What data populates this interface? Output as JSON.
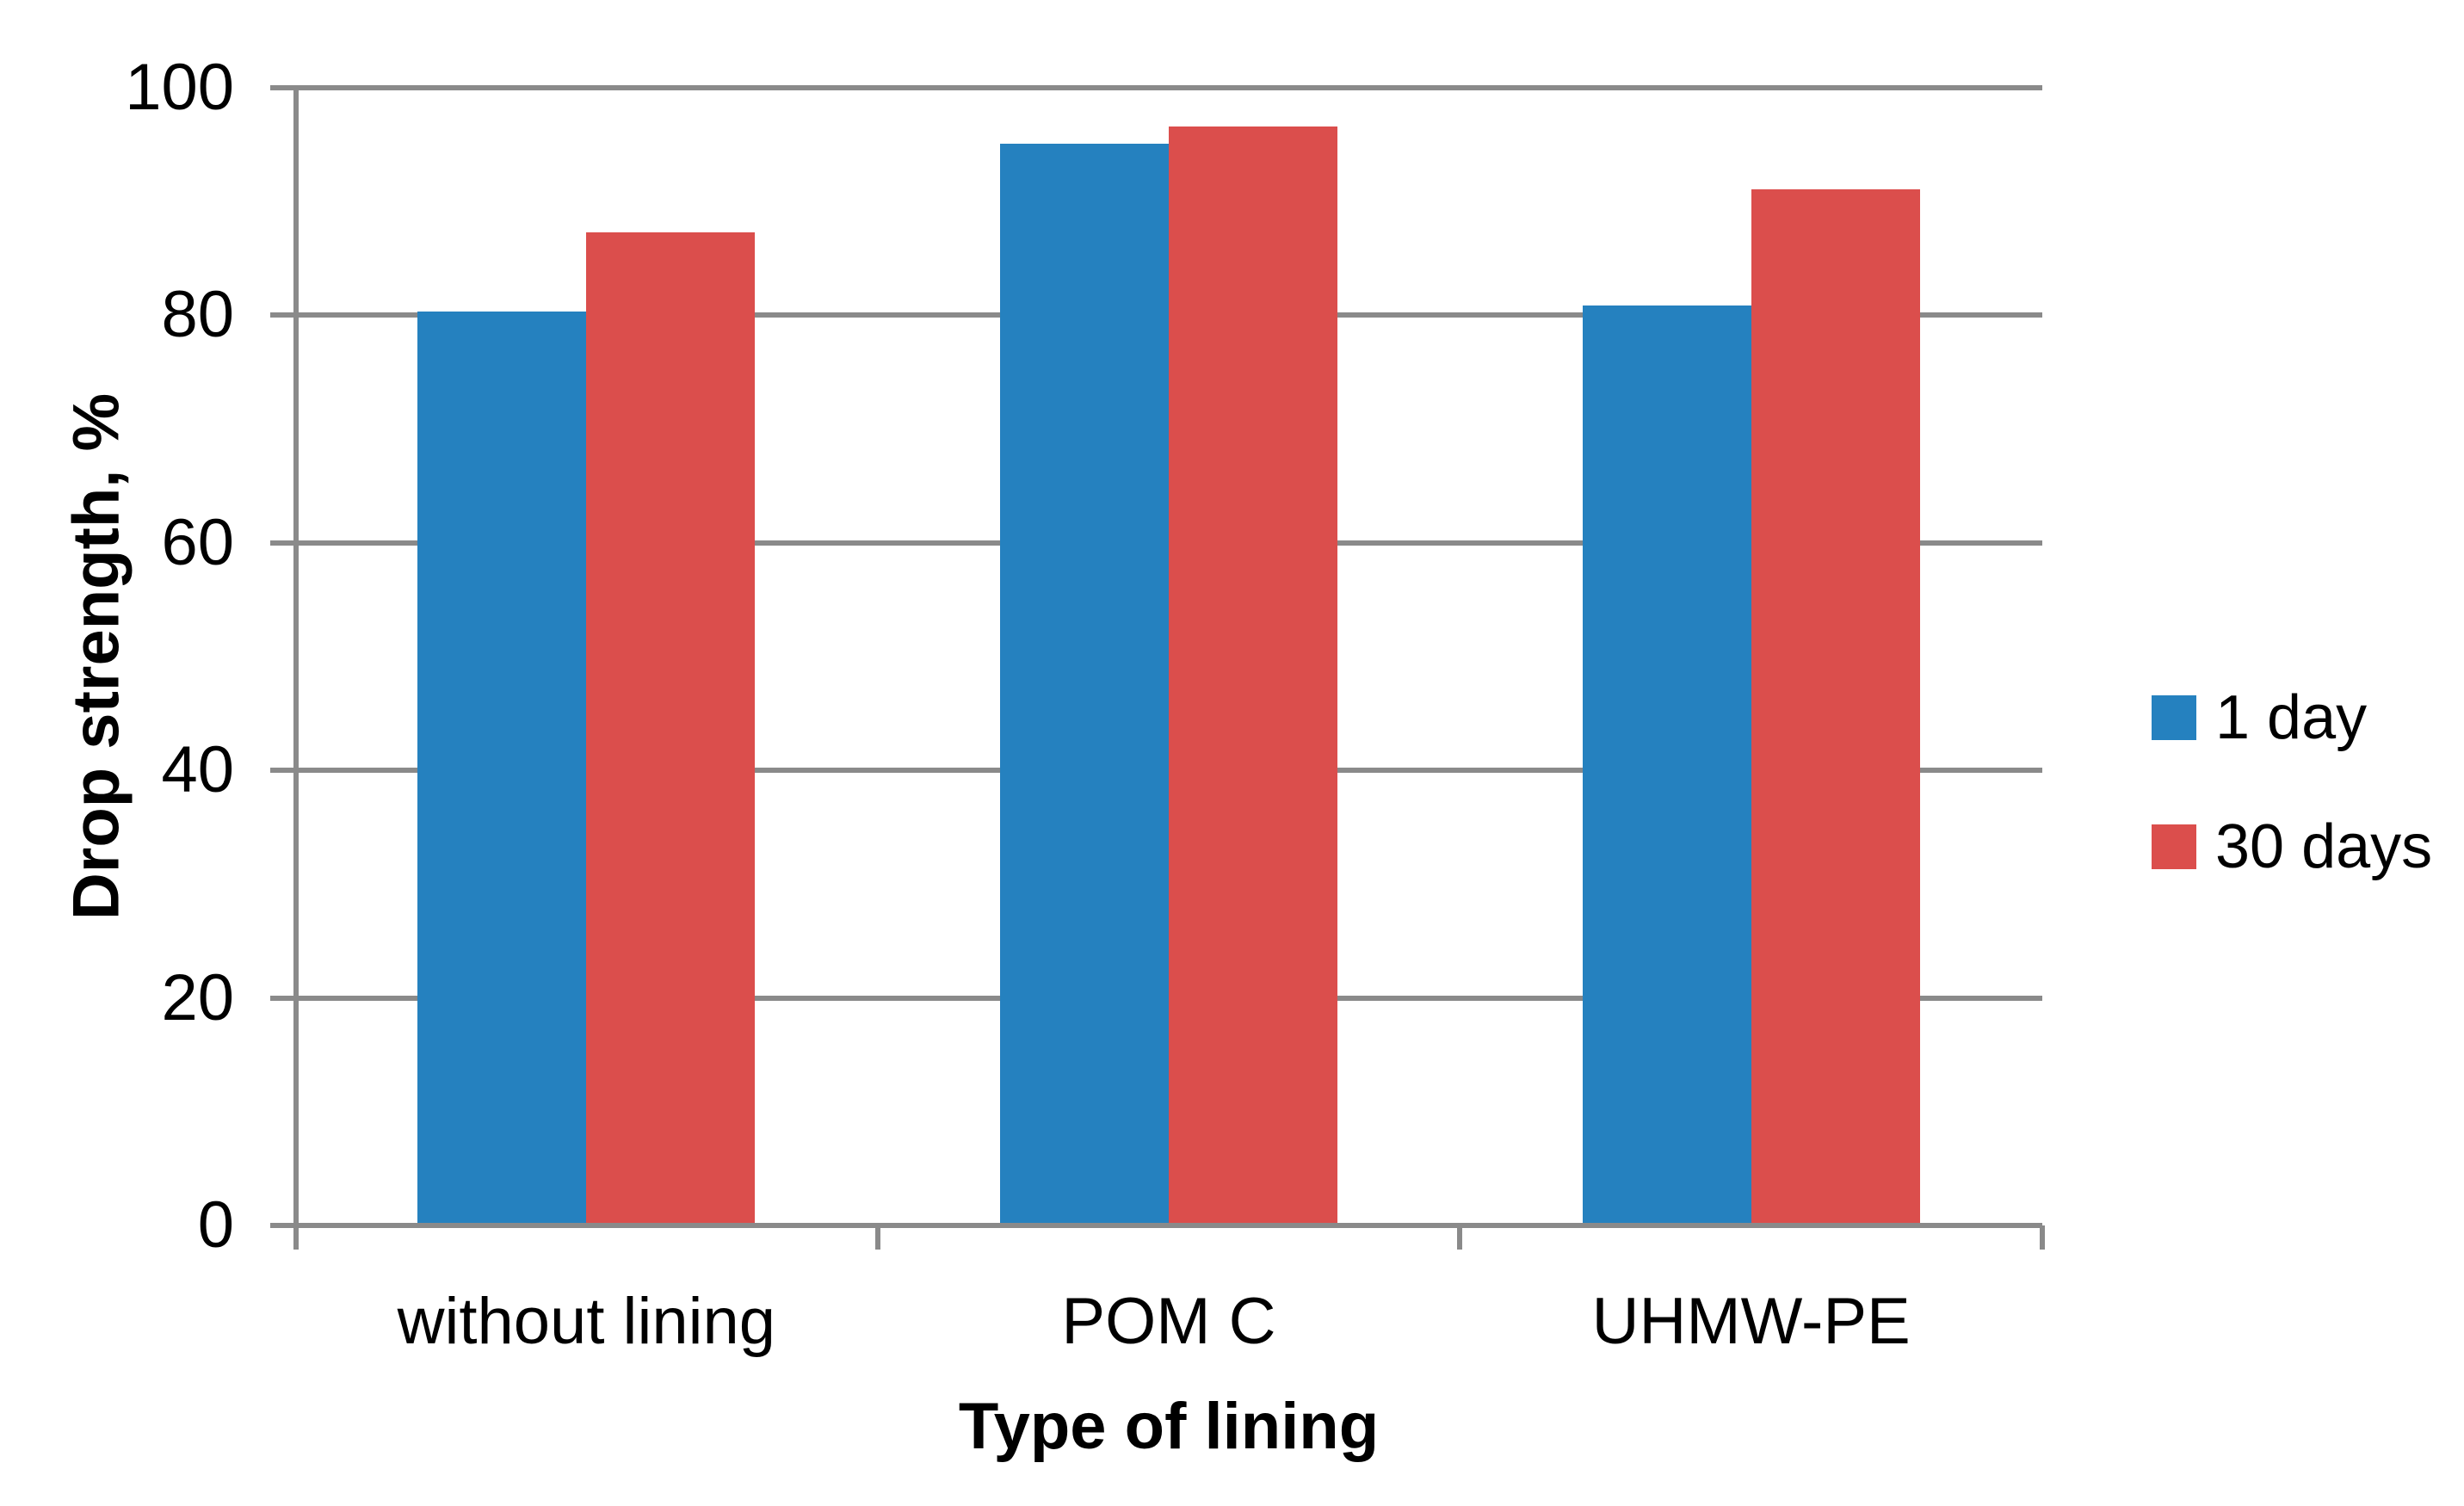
{
  "chart_data": {
    "type": "bar",
    "title": "",
    "categories": [
      "without lining",
      "POM C",
      "UHMW-PE"
    ],
    "series": [
      {
        "name": "1 day",
        "color": "#2581bf",
        "values": [
          80.3,
          95.1,
          80.9
        ]
      },
      {
        "name": "30 days",
        "color": "#db4e4c",
        "values": [
          87.3,
          96.6,
          91.1
        ]
      }
    ],
    "xlabel": "Type of lining",
    "ylabel": "Drop strength, %",
    "ylim": [
      0,
      100
    ],
    "yticks": [
      0,
      20,
      40,
      60,
      80,
      100
    ],
    "grid": true,
    "legend_position": "right"
  },
  "colors": {
    "axis": "#8a8a8a",
    "gridline": "#8a8a8a",
    "background": "#ffffff",
    "text": "#000000"
  }
}
